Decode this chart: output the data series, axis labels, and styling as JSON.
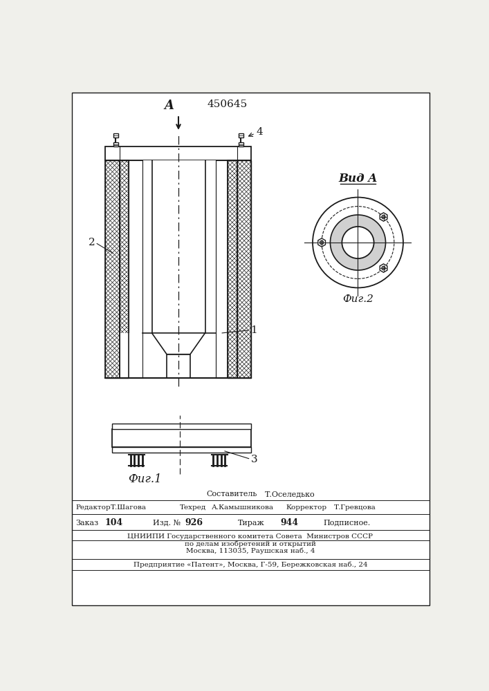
{
  "patent_number": "450645",
  "background_color": "#f0f0eb",
  "paper_color": "#f8f8f3",
  "line_color": "#1a1a1a",
  "fig1_label": "Фиг.1",
  "fig2_label": "Фиг.2",
  "vida_label": "Вид A",
  "label_1": "1",
  "label_2": "2",
  "label_3": "3",
  "label_4": "4",
  "label_A": "A",
  "footer_line1_left": "Составитель",
  "footer_line1_right": "Т.Оселедько",
  "footer_line2_p1": "Редактор",
  "footer_line2_p2": "Т.Шагова",
  "footer_line2_p3": "Техред",
  "footer_line2_p4": "А.Камышникова",
  "footer_line2_p5": "Корректор",
  "footer_line2_p6": "Т.Гревцова",
  "footer_line3_p1": "Заказ",
  "footer_line3_p2": "104",
  "footer_line3_p3": "Изд. №",
  "footer_line3_p4": "926",
  "footer_line3_p5": "Тираж",
  "footer_line3_p6": "944",
  "footer_line3_p7": "Подписное.",
  "footer_line4": "ЦНИИПИ Государственного комитета Совета  Министров СССР",
  "footer_line5": "по делам изобретений и открытий",
  "footer_line6": "Москва, 113035, Раушская наб., 4",
  "footer_line7": "Предприятие «Патент», Москва, Г-59, Бережковская наб., 24"
}
